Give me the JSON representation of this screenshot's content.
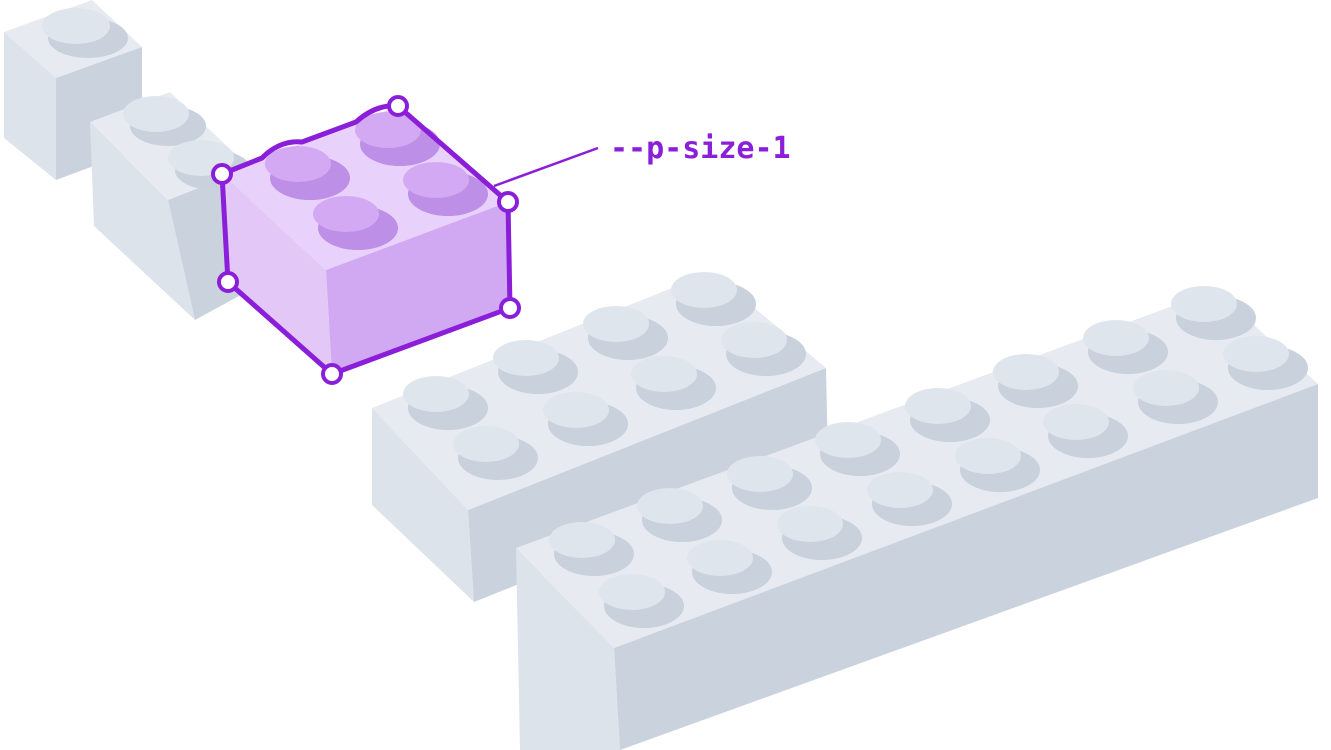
{
  "annotation": {
    "label": "--p-size-1"
  },
  "colors": {
    "brick_top": "#e7ebf1",
    "brick_left": "#dde3eb",
    "brick_right": "#cad3dd",
    "stud_top": "#dfe5ec",
    "stud_shadow": "#c8d1dc",
    "highlight_top": "#e8d1fa",
    "highlight_left": "#e3c8f7",
    "highlight_right": "#d1a9f2",
    "highlight_stud": "#d3a9f3",
    "highlight_stud_shadow": "#bd8fe7",
    "accent": "#8a1ed9"
  }
}
